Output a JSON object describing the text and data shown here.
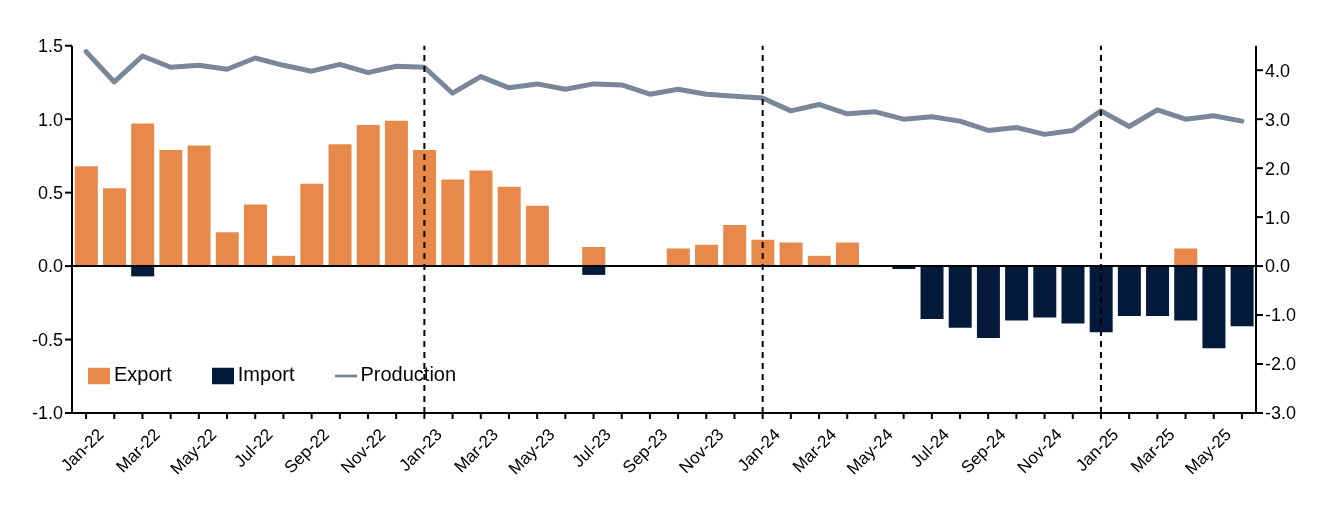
{
  "chart_data": {
    "type": "bar",
    "stacked": true,
    "categories": [
      "Jan-22",
      null,
      "Mar-22",
      null,
      "May-22",
      null,
      "Jul-22",
      null,
      "Sep-22",
      null,
      "Nov-22",
      null,
      "Jan-23",
      null,
      "Mar-23",
      null,
      "May-23",
      null,
      "Jul-23",
      null,
      "Sep-23",
      null,
      "Nov-23",
      null,
      "Jan-24",
      null,
      "Mar-24",
      null,
      "May-24",
      null,
      "Jul-24",
      null,
      "Sep-24",
      null,
      "Nov-24",
      null,
      "Jan-25",
      null,
      "Mar-25",
      null,
      "May-25",
      null
    ],
    "series": [
      {
        "name": "Export",
        "color": "#e6894a",
        "values": [
          0.68,
          0.53,
          0.97,
          0.79,
          0.82,
          0.23,
          0.42,
          0.07,
          0.56,
          0.83,
          0.96,
          0.99,
          0.79,
          0.59,
          0.65,
          0.54,
          0.41,
          null,
          0.13,
          null,
          null,
          0.12,
          0.145,
          0.28,
          0.18,
          0.16,
          0.07,
          0.16,
          null,
          null,
          null,
          null,
          null,
          null,
          null,
          null,
          null,
          null,
          null,
          0.12,
          null,
          null
        ]
      },
      {
        "name": "Import",
        "color": "#041a3a",
        "values": [
          null,
          null,
          -0.07,
          null,
          null,
          null,
          null,
          null,
          null,
          null,
          null,
          null,
          null,
          null,
          null,
          null,
          null,
          null,
          -0.06,
          null,
          null,
          null,
          null,
          null,
          null,
          null,
          null,
          null,
          null,
          -0.02,
          -0.36,
          -0.42,
          -0.49,
          -0.37,
          -0.35,
          -0.39,
          -0.45,
          -0.34,
          -0.34,
          -0.37,
          -0.56,
          -0.41
        ]
      },
      {
        "name": "Production",
        "type": "line",
        "axis": "y2",
        "color": "#7a8799",
        "values": [
          4.38,
          3.76,
          4.29,
          4.06,
          4.1,
          4.02,
          4.25,
          4.1,
          3.98,
          4.12,
          3.95,
          4.08,
          4.06,
          3.53,
          3.87,
          3.64,
          3.72,
          3.61,
          3.72,
          3.7,
          3.51,
          3.61,
          3.51,
          3.47,
          3.43,
          3.17,
          3.3,
          3.11,
          3.15,
          3.0,
          3.05,
          2.96,
          2.77,
          2.83,
          2.69,
          2.77,
          3.17,
          2.85,
          3.19,
          3.0,
          3.07,
          2.96
        ]
      }
    ],
    "ylim": [
      -1,
      1.5
    ],
    "yticks": [
      {
        "value": -1,
        "label": "-1.0"
      },
      {
        "value": -0.5,
        "label": "-0.5"
      },
      {
        "value": 0,
        "label": "0.0"
      },
      {
        "value": 0.5,
        "label": "0.5"
      },
      {
        "value": 1,
        "label": "1.0"
      },
      {
        "value": 1.5,
        "label": "1.5"
      }
    ],
    "y2lim": [
      -3,
      4.5
    ],
    "y2ticks": [
      {
        "value": -3,
        "label": "-3.0"
      },
      {
        "value": -2,
        "label": "-2.0"
      },
      {
        "value": -1,
        "label": "-1.0"
      },
      {
        "value": 0,
        "label": "0.0"
      },
      {
        "value": 1,
        "label": "1.0"
      },
      {
        "value": 2,
        "label": "2.0"
      },
      {
        "value": 3,
        "label": "3.0"
      },
      {
        "value": 4,
        "label": "4.0"
      }
    ],
    "ref_lines": [
      {
        "axis": "x",
        "value": "Jan-23",
        "color": "#000000",
        "line_style": "dashed"
      },
      {
        "axis": "x",
        "value": "Jan-24",
        "color": "#000000",
        "line_style": "dashed"
      },
      {
        "axis": "x",
        "value": "Jan-25",
        "color": "#000000",
        "line_style": "dashed"
      }
    ],
    "legend": "bottom left",
    "grid": false
  }
}
